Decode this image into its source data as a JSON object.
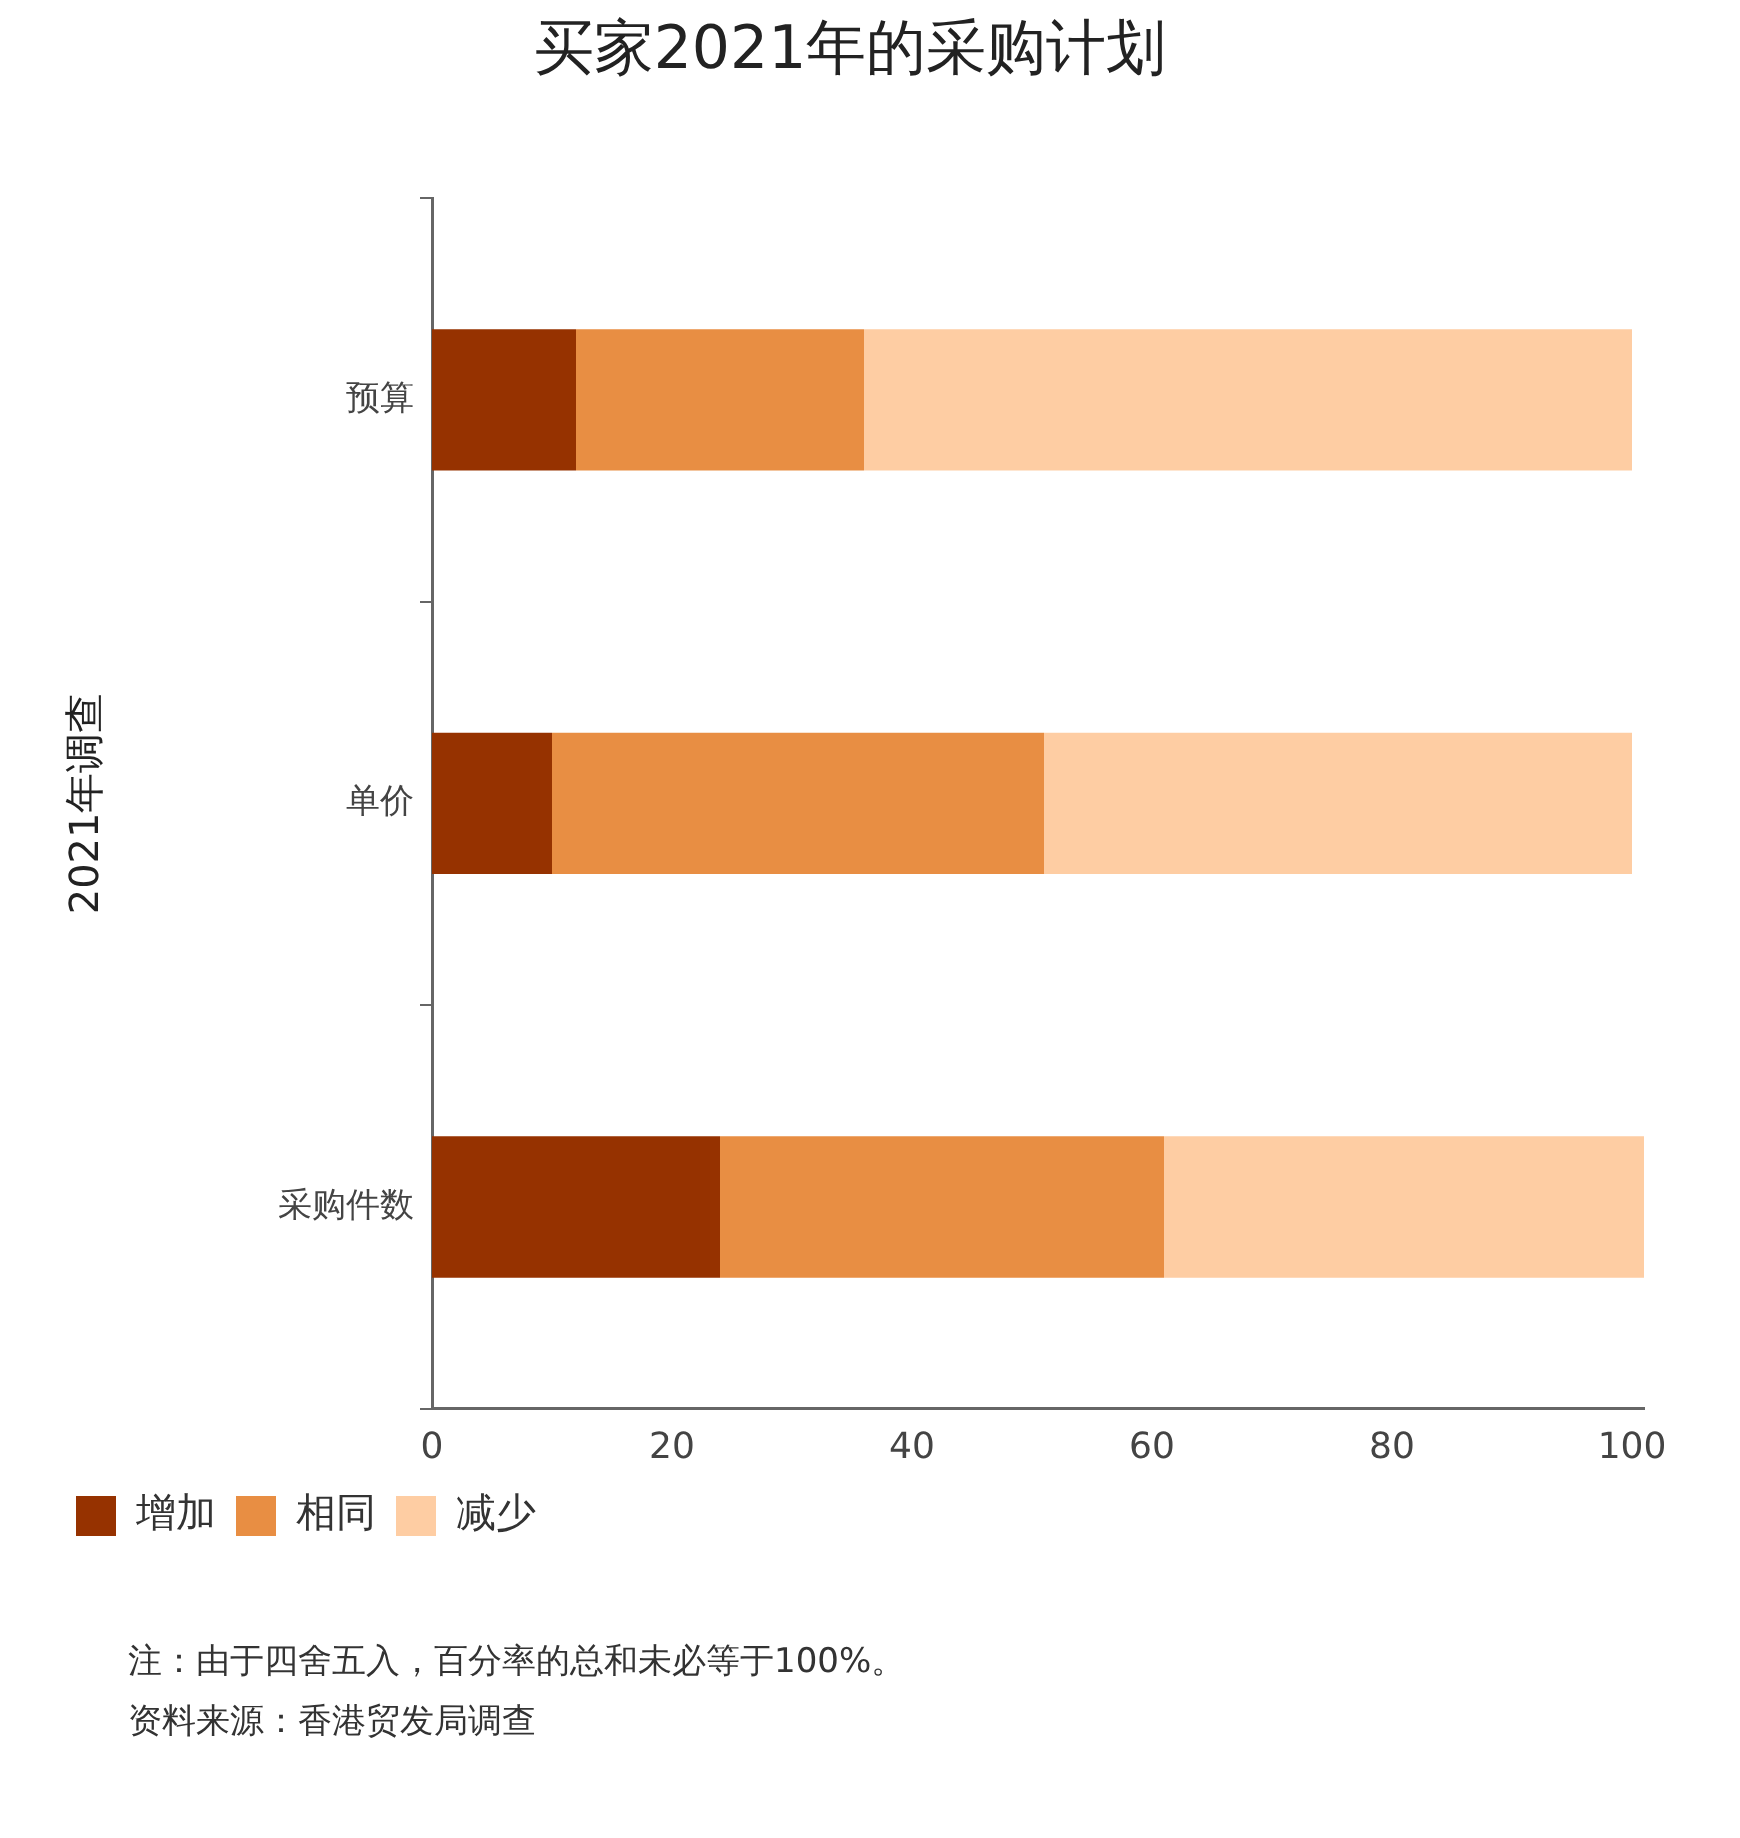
{
  "chart_data": {
    "type": "bar",
    "orientation": "horizontal",
    "stacked": true,
    "title": "买家2021年的采购计划",
    "ylabel": "2021年调查",
    "categories": [
      "预算",
      "单价",
      "采购件数"
    ],
    "series": [
      {
        "name": "增加",
        "color": "#963200",
        "values": [
          12,
          10,
          24
        ]
      },
      {
        "name": "相同",
        "color": "#e88e43",
        "values": [
          24,
          41,
          37
        ]
      },
      {
        "name": "减少",
        "color": "#fecda3",
        "values": [
          64,
          49,
          40
        ]
      }
    ],
    "xlim": [
      0,
      101
    ],
    "xticks": [
      0,
      20,
      40,
      60,
      80,
      100
    ],
    "grid": false,
    "legend": "bottom left",
    "annotations": [
      "注：由于四舍五入，百分率的总和未必等于100%。",
      "资料来源：香港贸发局调查"
    ]
  }
}
